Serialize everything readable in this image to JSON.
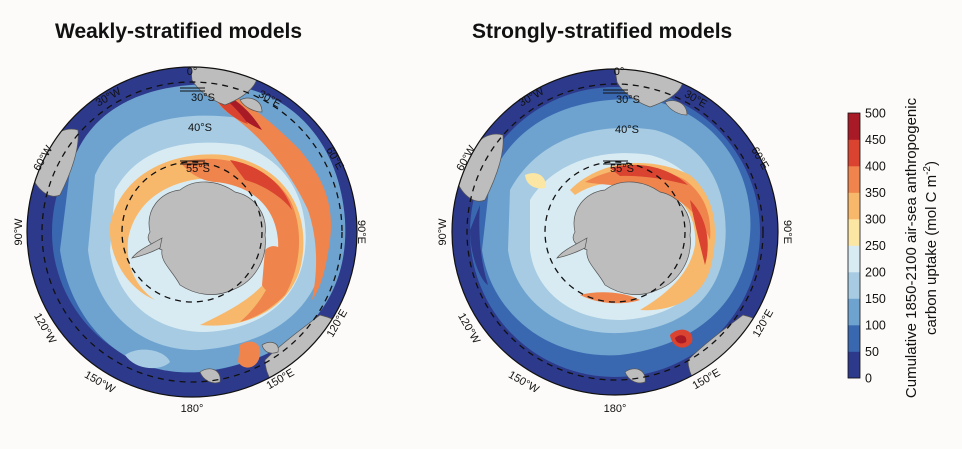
{
  "panels": [
    {
      "title": "Weakly-stratified models",
      "lon_labels": [
        "0°",
        "30°E",
        "60°E",
        "90°E",
        "120°E",
        "150°E",
        "180°",
        "150°W",
        "120°W",
        "90°W",
        "60°W",
        "30°W"
      ],
      "lat_labels": [
        "30°S",
        "40°S",
        "55°S"
      ]
    },
    {
      "title": "Strongly-stratified models",
      "lon_labels": [
        "0°",
        "30°E",
        "60°E",
        "90°E",
        "120°E",
        "150°E",
        "180°",
        "150°W",
        "120°W",
        "90°W",
        "60°W",
        "30°W"
      ],
      "lat_labels": [
        "30°S",
        "40°S",
        "55°S"
      ]
    }
  ],
  "colorbar": {
    "title_line1": "Cumulative 1850-2100 air-sea anthropogenic",
    "title_line2": "carbon uptake (mol C m",
    "title_sup": "-2",
    "title_end": ")",
    "ticks": [
      "0",
      "50",
      "100",
      "150",
      "200",
      "250",
      "300",
      "350",
      "400",
      "450",
      "500"
    ],
    "colors": [
      "#2d3a8c",
      "#3a68b0",
      "#6ea3cf",
      "#a6cbe3",
      "#d8ebf2",
      "#fbe6a4",
      "#f7b86b",
      "#ef844d",
      "#d9432f",
      "#a81a26"
    ]
  }
}
